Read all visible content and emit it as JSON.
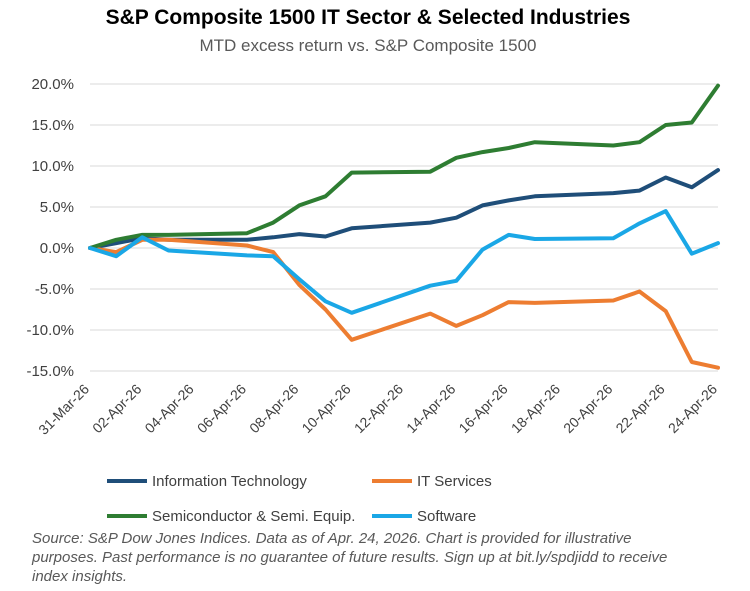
{
  "chart_data": {
    "type": "line",
    "title": "S&P Composite 1500 IT Sector & Selected Industries",
    "subtitle": "MTD excess return vs. S&P Composite 1500",
    "x": [
      "31-Mar-26",
      "01-Apr-26",
      "02-Apr-26",
      "03-Apr-26",
      "06-Apr-26",
      "07-Apr-26",
      "08-Apr-26",
      "09-Apr-26",
      "10-Apr-26",
      "13-Apr-26",
      "14-Apr-26",
      "15-Apr-26",
      "16-Apr-26",
      "17-Apr-26",
      "20-Apr-26",
      "21-Apr-26",
      "22-Apr-26",
      "23-Apr-26",
      "24-Apr-26"
    ],
    "x_tick_labels": [
      "31-Mar-26",
      "02-Apr-26",
      "04-Apr-26",
      "06-Apr-26",
      "08-Apr-26",
      "10-Apr-26",
      "12-Apr-26",
      "14-Apr-26",
      "16-Apr-26",
      "18-Apr-26",
      "20-Apr-26",
      "22-Apr-26",
      "24-Apr-26"
    ],
    "ylim": [
      -15,
      20
    ],
    "y_ticks": [
      "-15.0%",
      "-10.0%",
      "-5.0%",
      "0.0%",
      "5.0%",
      "10.0%",
      "15.0%",
      "20.0%"
    ],
    "y_tick_values": [
      -15,
      -10,
      -5,
      0,
      5,
      10,
      15,
      20
    ],
    "grid": true,
    "legend_position": "bottom",
    "series": [
      {
        "name": "Information Technology",
        "color": "#1f4e79",
        "values": [
          0.0,
          0.6,
          1.2,
          1.0,
          1.0,
          1.3,
          1.7,
          1.4,
          2.4,
          3.1,
          3.7,
          5.2,
          5.8,
          6.3,
          6.7,
          7.0,
          8.6,
          7.4,
          9.5
        ]
      },
      {
        "name": "IT Services",
        "color": "#ed7d31",
        "values": [
          0.0,
          -0.5,
          1.0,
          1.0,
          0.3,
          -0.5,
          -4.5,
          -7.5,
          -11.2,
          -8.0,
          -9.5,
          -8.2,
          -6.6,
          -6.7,
          -6.4,
          -5.3,
          -7.7,
          -13.9,
          -14.6
        ]
      },
      {
        "name": "Semiconductor & Semi. Equip.",
        "color": "#2e7d32",
        "values": [
          0.0,
          1.0,
          1.6,
          1.6,
          1.8,
          3.1,
          5.2,
          6.3,
          9.2,
          9.3,
          11.0,
          11.7,
          12.2,
          12.9,
          12.5,
          12.9,
          15.0,
          15.3,
          19.8
        ]
      },
      {
        "name": "Software",
        "color": "#1aa7e6",
        "values": [
          0.0,
          -1.0,
          1.3,
          -0.3,
          -0.9,
          -1.0,
          -3.8,
          -6.5,
          -7.9,
          -4.6,
          -4.0,
          -0.2,
          1.6,
          1.1,
          1.2,
          3.0,
          4.5,
          -0.7,
          0.6
        ]
      }
    ]
  },
  "footnote": [
    "Source: S&P Dow Jones Indices. Data as of Apr. 24, 2026. Chart is provided for illustrative",
    "purposes. Past performance is no guarantee of future results. Sign up at bit.ly/spdjidd to receive",
    "index insights."
  ]
}
